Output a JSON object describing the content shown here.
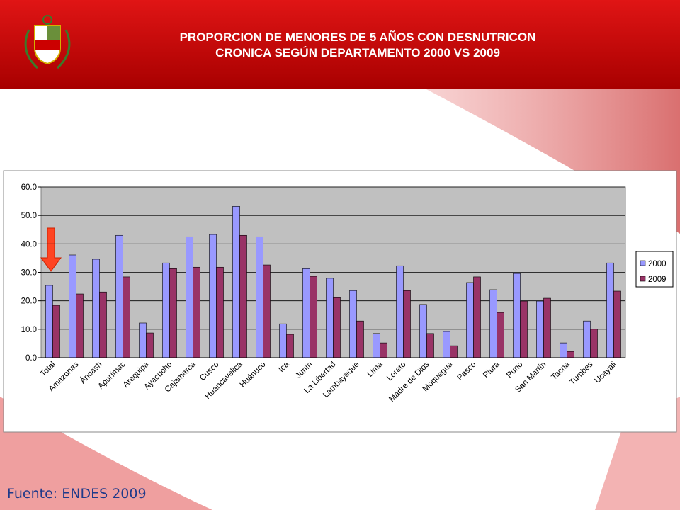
{
  "chart_data": {
    "type": "bar",
    "title": "PROPORCION DE MENORES DE 5 AÑOS CON DESNUTRICON CRONICA SEGÚN DEPARTAMENTO 2000 VS 2009",
    "source": "Fuente: ENDES 2009",
    "categories": [
      "Total",
      "Amazonas",
      "Áncash",
      "Apurímac",
      "Arequipa",
      "Ayacucho",
      "Cajamarca",
      "Cusco",
      "Huancavelica",
      "Huánuco",
      "Ica",
      "Junín",
      "La Libertad",
      "Lambayeque",
      "Lima",
      "Loreto",
      "Madre de Dios",
      "Moquegua",
      "Pasco",
      "Piura",
      "Puno",
      "San Martín",
      "Tacna",
      "Tumbes",
      "Ucayali"
    ],
    "series": [
      {
        "name": "2000",
        "color": "#9999ff",
        "values": [
          25.4,
          36.1,
          34.6,
          43.0,
          12.2,
          33.3,
          42.5,
          43.3,
          53.2,
          42.5,
          11.9,
          31.3,
          27.9,
          23.6,
          8.5,
          32.3,
          18.7,
          9.2,
          26.4,
          23.9,
          29.6,
          19.9,
          5.2,
          12.9,
          33.3
        ]
      },
      {
        "name": "2009",
        "color": "#993366",
        "values": [
          18.4,
          22.4,
          23.1,
          28.4,
          8.7,
          31.3,
          31.8,
          31.8,
          43.0,
          32.6,
          8.2,
          28.6,
          21.1,
          12.9,
          5.2,
          23.6,
          8.5,
          4.2,
          28.4,
          15.9,
          19.9,
          20.9,
          2.2,
          10.0,
          23.4
        ]
      }
    ],
    "ylim": [
      0,
      60
    ],
    "yticks": [
      {
        "value": 0,
        "label": "0.0"
      },
      {
        "value": 10,
        "label": "10.0"
      },
      {
        "value": 20,
        "label": "20.0"
      },
      {
        "value": 30,
        "label": "30.0"
      },
      {
        "value": 40,
        "label": "40.0"
      },
      {
        "value": 50,
        "label": "50.0"
      },
      {
        "value": 60,
        "label": "60.0"
      }
    ],
    "grid": true,
    "legend": "right"
  }
}
